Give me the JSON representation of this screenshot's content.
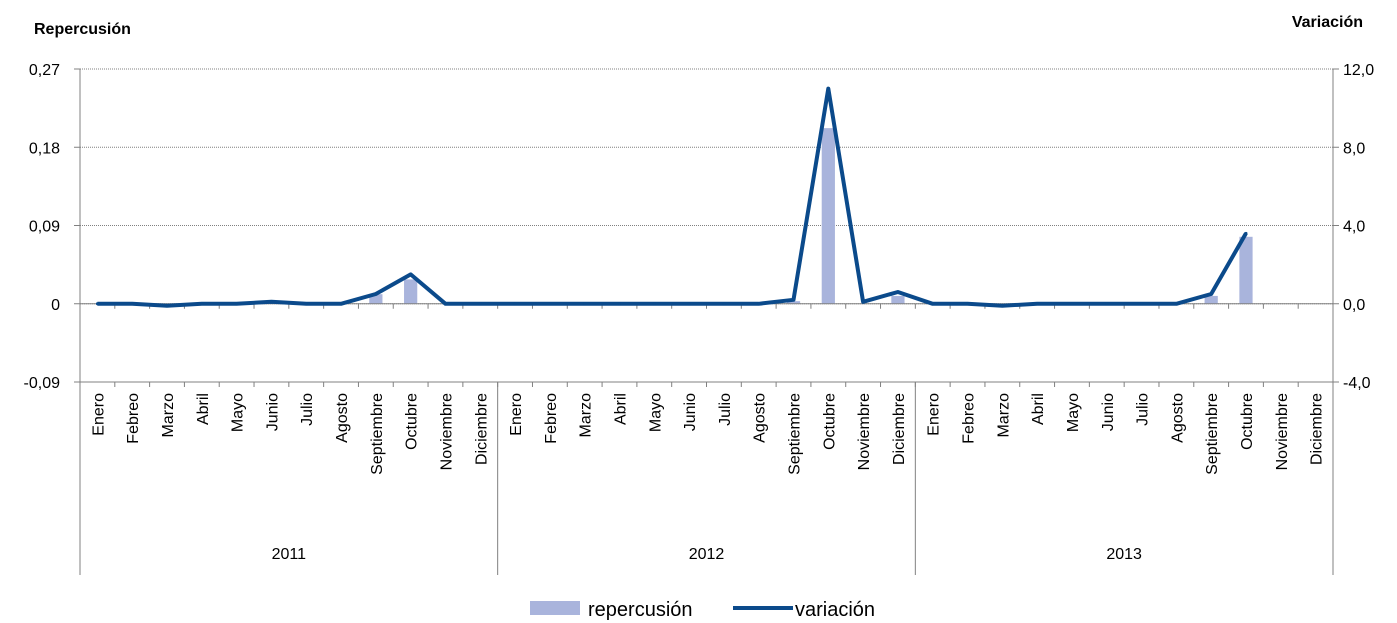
{
  "chart_data": {
    "type": "bar+line",
    "left_axis_title": "Repercusión",
    "right_axis_title": "Variación",
    "left_ticks": [
      "0,27",
      "0,18",
      "0,09",
      "0",
      "-0,09"
    ],
    "right_ticks": [
      "12,0",
      "8,0",
      "4,0",
      "0,0",
      "-4,0"
    ],
    "ylim_left": [
      -0.09,
      0.27
    ],
    "ylim_right": [
      -4.0,
      12.0
    ],
    "grid": true,
    "legend_position": "bottom",
    "years": [
      "2011",
      "2012",
      "2013"
    ],
    "months": [
      "Enero",
      "Febreo",
      "Marzo",
      "Abril",
      "Mayo",
      "Junio",
      "Julio",
      "Agosto",
      "Septiembre",
      "Octubre",
      "Noviembre",
      "Diciembre"
    ],
    "series": [
      {
        "name": "repercusión",
        "kind": "bar",
        "axis": "left",
        "color": "#a9b4dc",
        "values": [
          0,
          0,
          0,
          0,
          0,
          0,
          0,
          0,
          0.011,
          0.028,
          0,
          0,
          0,
          0,
          0,
          0,
          0,
          0,
          0,
          0,
          0.003,
          0.202,
          0,
          0.009,
          0,
          0,
          0,
          0,
          0,
          0,
          0,
          0,
          0.009,
          0.077,
          null,
          null
        ]
      },
      {
        "name": "variación",
        "kind": "line",
        "axis": "right",
        "color": "#0b4a8b",
        "values": [
          0.0,
          0.0,
          -0.1,
          0.0,
          0.0,
          0.1,
          0.0,
          0.0,
          0.5,
          1.5,
          0.0,
          0.0,
          0.0,
          0.0,
          0.0,
          0.0,
          0.0,
          0.0,
          0.0,
          0.0,
          0.2,
          11.0,
          0.1,
          0.6,
          0.0,
          0.0,
          -0.1,
          0.0,
          0.0,
          0.0,
          0.0,
          0.0,
          0.5,
          3.6,
          null,
          null
        ]
      }
    ]
  }
}
